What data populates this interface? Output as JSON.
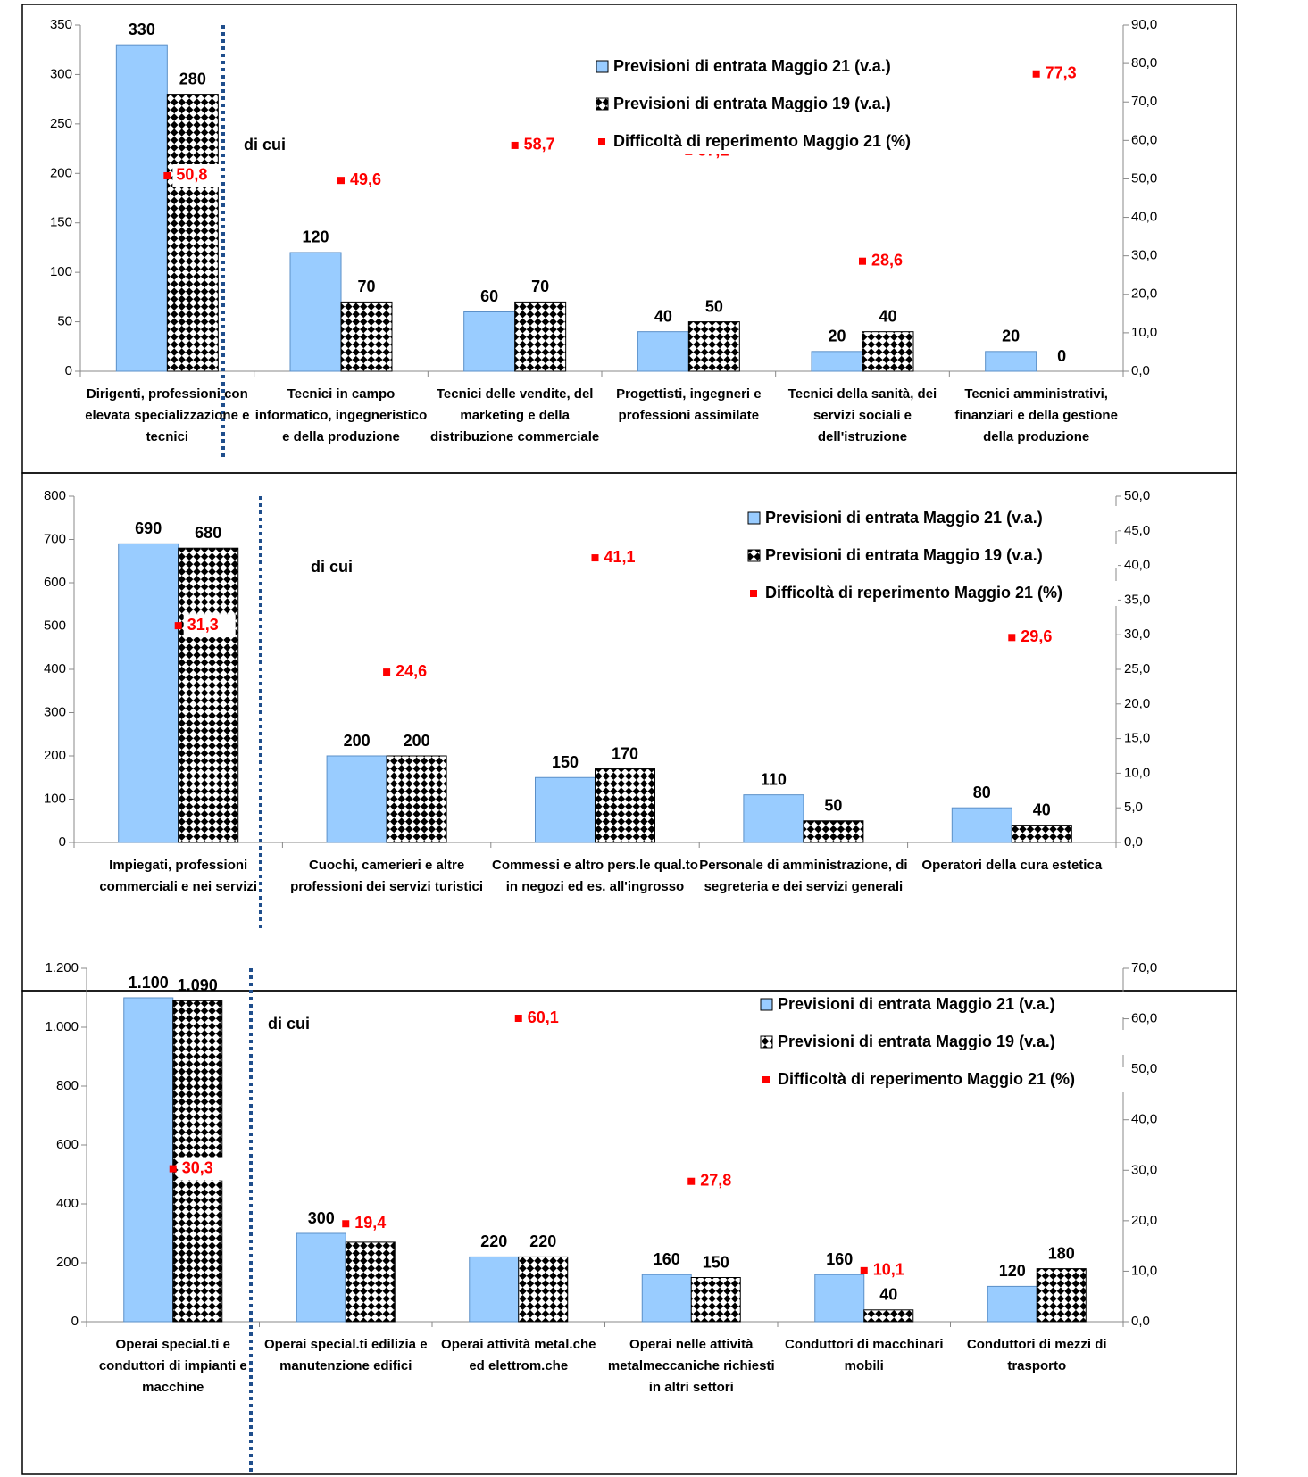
{
  "chart_data": [
    {
      "type": "bar",
      "annotation": "di cui",
      "categories": [
        "Dirigenti, professioni con elevata specializzazione e tecnici",
        "Tecnici in campo informatico, ingegneristico e della produzione",
        "Tecnici delle vendite, del marketing e della distribuzione commerciale",
        "Progettisti, ingegneri e professioni assimilate",
        "Tecnici della sanità, dei servizi sociali e dell'istruzione",
        "Tecnici amministrativi, finanziari e della gestione della produzione"
      ],
      "series": [
        {
          "name": "Previsioni di entrata Maggio 21 (v.a.)",
          "color": "#99ccff",
          "mark": "bar",
          "values": [
            330,
            120,
            60,
            40,
            20,
            20
          ]
        },
        {
          "name": "Previsioni di entrata Maggio 19 (v.a.)",
          "color": "#000000",
          "mark": "bar",
          "pattern": "checkerboard",
          "values": [
            280,
            70,
            70,
            50,
            40,
            0
          ]
        },
        {
          "name": "Difficoltà di reperimento Maggio 21 (%)",
          "color": "#ff0000",
          "mark": "square",
          "axis": "y2",
          "values": [
            50.8,
            49.6,
            58.7,
            57.1,
            28.6,
            77.3
          ],
          "value_labels": [
            "50,8",
            "49,6",
            "58,7",
            "57,1",
            "28,6",
            "77,3"
          ]
        }
      ],
      "ylim": [
        0,
        350
      ],
      "yticks": [
        0,
        50,
        100,
        150,
        200,
        250,
        300,
        350
      ],
      "y2lim": [
        0,
        90
      ],
      "y2ticks": [
        {
          "value": 0,
          "label": "0,0"
        },
        {
          "value": 10,
          "label": "10,0"
        },
        {
          "value": 20,
          "label": "20,0"
        },
        {
          "value": 30,
          "label": "30,0"
        },
        {
          "value": 40,
          "label": "40,0"
        },
        {
          "value": 50,
          "label": "50,0"
        },
        {
          "value": 60,
          "label": "60,0"
        },
        {
          "value": 70,
          "label": "70,0"
        },
        {
          "value": 80,
          "label": "80,0"
        },
        {
          "value": 90,
          "label": "90,0"
        }
      ]
    },
    {
      "type": "bar",
      "annotation": "di cui",
      "categories": [
        "Impiegati, professioni commerciali e nei servizi",
        "Cuochi, camerieri e altre professioni dei servizi turistici",
        "Commessi e altro pers.le qual.to in negozi ed es. all'ingrosso",
        "Personale di amministrazione, di segreteria e dei servizi generali",
        "Operatori della cura estetica"
      ],
      "series": [
        {
          "name": "Previsioni di entrata Maggio 21 (v.a.)",
          "color": "#99ccff",
          "mark": "bar",
          "values": [
            690,
            200,
            150,
            110,
            80
          ]
        },
        {
          "name": "Previsioni di entrata Maggio 19 (v.a.)",
          "color": "#000000",
          "mark": "bar",
          "pattern": "checkerboard",
          "values": [
            680,
            200,
            170,
            50,
            40
          ]
        },
        {
          "name": "Difficoltà di reperimento Maggio 21 (%)",
          "color": "#ff0000",
          "mark": "square",
          "axis": "y2",
          "values": [
            31.3,
            24.6,
            41.1,
            null,
            29.6
          ],
          "value_labels": [
            "31,3",
            "24,6",
            "41,1",
            null,
            "29,6"
          ]
        }
      ],
      "ylim": [
        0,
        800
      ],
      "yticks": [
        0,
        100,
        200,
        300,
        400,
        500,
        600,
        700,
        800
      ],
      "y2lim": [
        0,
        50
      ],
      "y2ticks": [
        {
          "value": 0,
          "label": "0,0"
        },
        {
          "value": 5,
          "label": "5,0"
        },
        {
          "value": 10,
          "label": "10,0"
        },
        {
          "value": 15,
          "label": "15,0"
        },
        {
          "value": 20,
          "label": "20,0"
        },
        {
          "value": 25,
          "label": "25,0"
        },
        {
          "value": 30,
          "label": "30,0"
        },
        {
          "value": 35,
          "label": "35,0"
        },
        {
          "value": 40,
          "label": "40,0"
        },
        {
          "value": 45,
          "label": "45,0"
        },
        {
          "value": 50,
          "label": "50,0"
        }
      ]
    },
    {
      "type": "bar",
      "annotation": "di cui",
      "categories": [
        "Operai special.ti e conduttori di impianti e macchine",
        "Operai special.ti edilizia e manutenzione edifici",
        "Operai attività metal.che ed elettrom.che",
        "Operai nelle attività metalmeccaniche richiesti in altri settori",
        "Conduttori di macchinari mobili",
        "Conduttori di mezzi di trasporto"
      ],
      "series": [
        {
          "name": "Previsioni di entrata Maggio 21 (v.a.)",
          "color": "#99ccff",
          "mark": "bar",
          "values": [
            1100,
            300,
            220,
            160,
            160,
            120
          ],
          "value_labels": [
            "1.100",
            "300",
            "220",
            "160",
            "160",
            "120"
          ]
        },
        {
          "name": "Previsioni di entrata Maggio 19 (v.a.)",
          "color": "#000000",
          "mark": "bar",
          "pattern": "checkerboard",
          "values": [
            1090,
            270,
            220,
            150,
            40,
            180
          ],
          "value_labels": [
            "1.090",
            null,
            "220",
            "150",
            "40",
            "180"
          ]
        },
        {
          "name": "Difficoltà di reperimento Maggio 21 (%)",
          "color": "#ff0000",
          "mark": "square",
          "axis": "y2",
          "values": [
            30.3,
            19.4,
            60.1,
            27.8,
            10.1,
            null
          ],
          "value_labels": [
            "30,3",
            "19,4",
            "60,1",
            "27,8",
            "10,1",
            null
          ]
        }
      ],
      "ylim": [
        0,
        1200
      ],
      "yticks": [
        0,
        200,
        400,
        600,
        800,
        {
          "value": 1000,
          "label": "1.000"
        },
        {
          "value": 1200,
          "label": "1.200"
        }
      ],
      "y2lim": [
        0,
        70
      ],
      "y2ticks": [
        {
          "value": 0,
          "label": "0,0"
        },
        {
          "value": 10,
          "label": "10,0"
        },
        {
          "value": 20,
          "label": "20,0"
        },
        {
          "value": 30,
          "label": "30,0"
        },
        {
          "value": 40,
          "label": "40,0"
        },
        {
          "value": 50,
          "label": "50,0"
        },
        {
          "value": 60,
          "label": "60,0"
        },
        {
          "value": 70,
          "label": "70,0"
        }
      ]
    }
  ]
}
